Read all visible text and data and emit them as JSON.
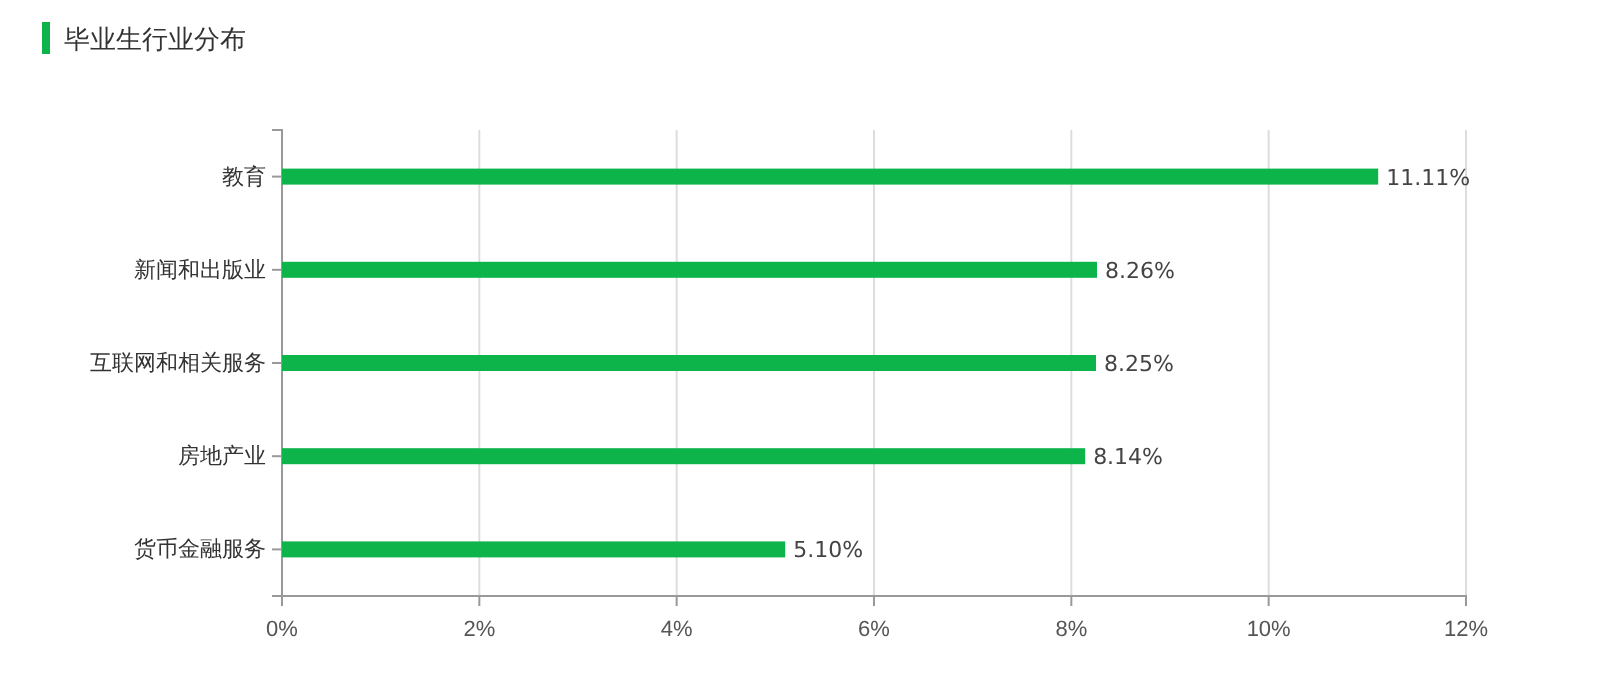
{
  "chart_data": {
    "type": "bar",
    "orientation": "horizontal",
    "title": "毕业生行业分布",
    "categories": [
      "教育",
      "新闻和出版业",
      "互联网和相关服务",
      "房地产业",
      "货币金融服务"
    ],
    "values": [
      11.11,
      8.26,
      8.25,
      8.14,
      5.1
    ],
    "value_labels": [
      "11.11%",
      "8.26%",
      "8.25%",
      "8.14%",
      "5.10%"
    ],
    "color": "#0cb44a",
    "xlim": [
      0,
      12
    ],
    "xticks": [
      {
        "value": 0,
        "label": "0%"
      },
      {
        "value": 2,
        "label": "2%"
      },
      {
        "value": 4,
        "label": "4%"
      },
      {
        "value": 6,
        "label": "6%"
      },
      {
        "value": 8,
        "label": "8%"
      },
      {
        "value": 10,
        "label": "10%"
      },
      {
        "value": 12,
        "label": "12%"
      }
    ],
    "grid": "x"
  }
}
